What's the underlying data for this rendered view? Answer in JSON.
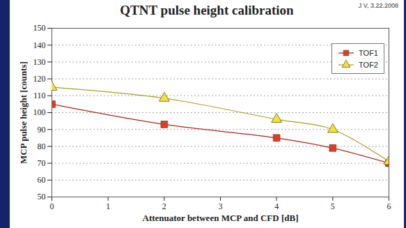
{
  "chart_data": {
    "type": "line",
    "title": "QTNT pulse height calibration",
    "annotations": [
      "J V, 3.22.2008"
    ],
    "x_label": "Attenuator between MCP and CFD [dB]",
    "y_label": "MCP pulse height [counts]",
    "x": [
      0,
      2,
      4,
      5,
      6
    ],
    "xlim": [
      0,
      6
    ],
    "xticks": [
      0,
      1,
      2,
      3,
      4,
      5,
      6
    ],
    "ylim": [
      50,
      150
    ],
    "yticks": [
      50,
      60,
      70,
      80,
      90,
      100,
      110,
      120,
      130,
      140,
      150
    ],
    "grid": true,
    "legend": "top-right",
    "series": [
      {
        "name": "TOF1",
        "color": "#e8372a",
        "marker": "square",
        "line_style": "solid",
        "values": [
          105,
          93,
          85,
          79,
          70
        ]
      },
      {
        "name": "TOF2",
        "color": "#f2e23a",
        "marker": "triangle",
        "line_style": "solid",
        "values": [
          115,
          108.5,
          96,
          90,
          71
        ]
      }
    ]
  }
}
